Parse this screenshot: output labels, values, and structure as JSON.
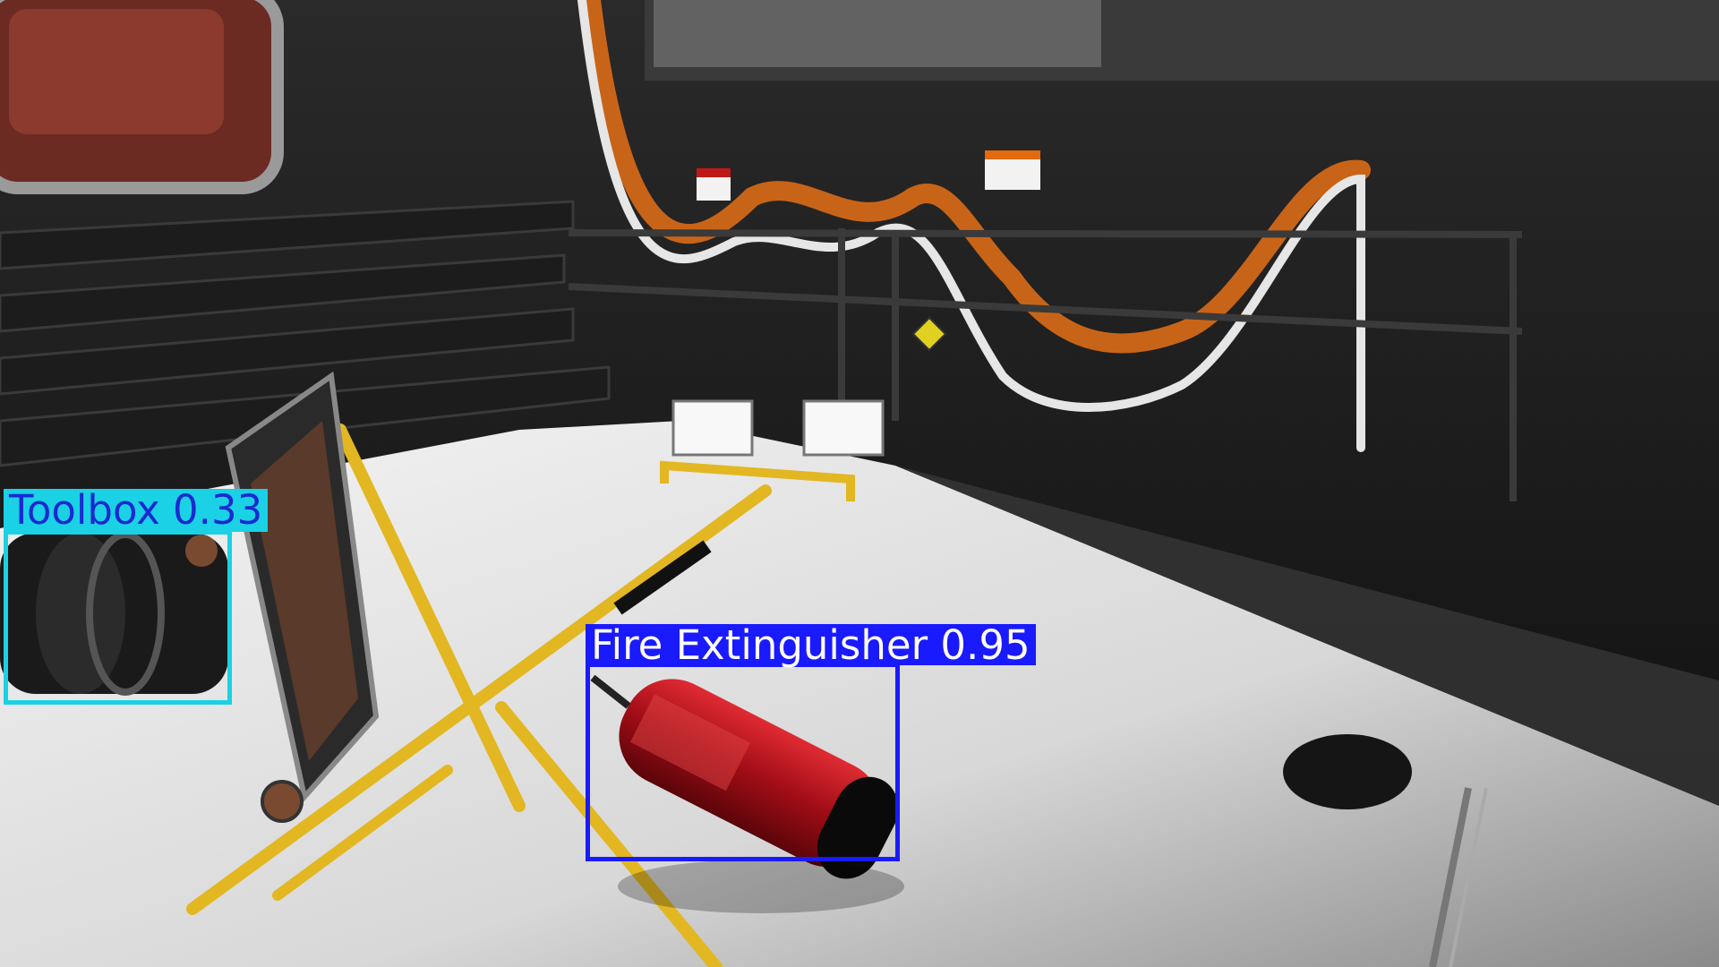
{
  "scene": {
    "colors": {
      "floor": "#e8e8e8",
      "wall": "#1a1a1a",
      "hose": "#d2691e",
      "railing": "#2a2a2a",
      "stand": "#e2b722",
      "extinguisher": "#b3121a"
    }
  },
  "detections": [
    {
      "label": "Toolbox 0.33",
      "color": "#1ad1e5",
      "text_color": "#1a2ad1"
    },
    {
      "label": "Fire Extinguisher 0.95",
      "color": "#1a1aff",
      "text_color": "#ffffff"
    }
  ]
}
